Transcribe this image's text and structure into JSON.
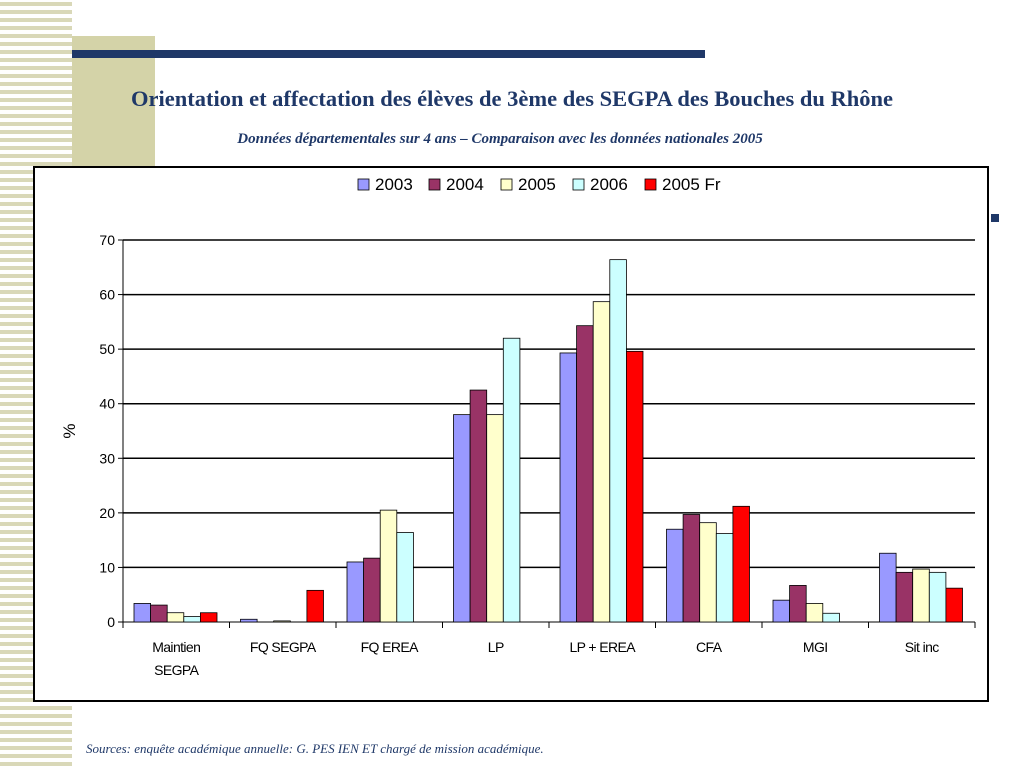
{
  "slide": {
    "title": "Orientation et affectation des élèves de 3ème des SEGPA  des Bouches du Rhône",
    "subtitle": "Données départementales sur 4 ans – Comparaison avec les données nationales 2005",
    "source": "Sources: enquête académique annuelle: G. PES IEN ET chargé de mission académique."
  },
  "colors": {
    "title": "#1f3868",
    "decoration_bar": "#1f3868",
    "decoration_square": "#d4d3a8",
    "stripes": "#d9d8b8"
  },
  "chart_data": {
    "type": "bar",
    "title": "",
    "xlabel": "",
    "ylabel": "%",
    "ylim": [
      0,
      70
    ],
    "yticks": [
      0,
      10,
      20,
      30,
      40,
      50,
      60,
      70
    ],
    "grid": true,
    "legend_position": "top",
    "categories": [
      [
        "Maintien",
        "SEGPA"
      ],
      [
        "FQ SEGPA"
      ],
      [
        "FQ EREA"
      ],
      [
        "LP"
      ],
      [
        "LP + EREA"
      ],
      [
        "CFA"
      ],
      [
        "MGI"
      ],
      [
        "Sit inc"
      ]
    ],
    "series": [
      {
        "name": "2003",
        "color": "#9999ff",
        "values": [
          3.4,
          0.5,
          11.0,
          38.0,
          49.3,
          17.0,
          4.0,
          12.6
        ]
      },
      {
        "name": "2004",
        "color": "#993366",
        "values": [
          3.1,
          0.0,
          11.7,
          42.5,
          54.3,
          19.7,
          6.7,
          9.1
        ]
      },
      {
        "name": "2005",
        "color": "#ffffcc",
        "values": [
          1.7,
          0.2,
          20.5,
          38.0,
          58.7,
          18.2,
          3.4,
          9.7
        ]
      },
      {
        "name": "2006",
        "color": "#ccffff",
        "values": [
          1.0,
          0.0,
          16.4,
          52.0,
          66.4,
          16.2,
          1.6,
          9.1
        ]
      },
      {
        "name": "2005 Fr",
        "color": "#ff0000",
        "values": [
          1.7,
          5.8,
          null,
          null,
          49.6,
          21.2,
          null,
          6.2
        ]
      }
    ]
  }
}
